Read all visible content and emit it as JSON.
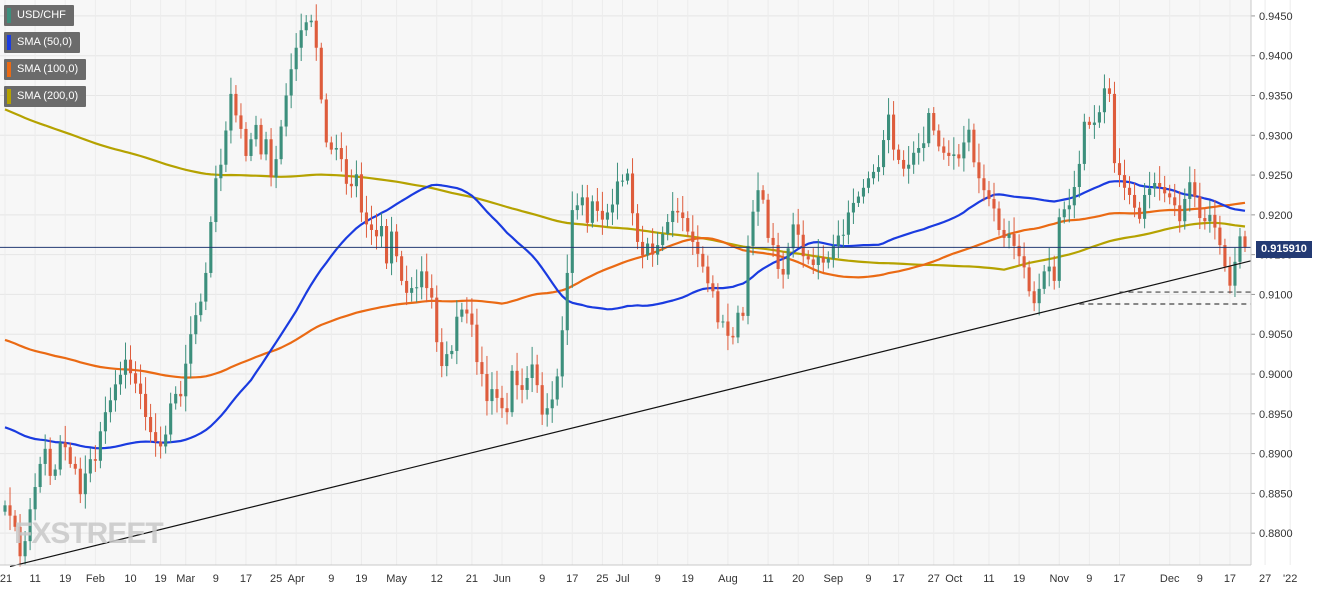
{
  "colors": {
    "up": "#3c8f7c",
    "down": "#de5c3c",
    "sma50": "#1a3be0",
    "sma100": "#ea6a14",
    "sma200": "#b5a200",
    "trendline": "#111111",
    "current_line": "#233a73",
    "support_lines": "#444444"
  },
  "watermark": "FXSTREET",
  "chart_data": {
    "type": "candlestick",
    "symbol": "USD/CHF",
    "legend": [
      {
        "label": "USD/CHF",
        "color": "#3c8f7c"
      },
      {
        "label": "SMA (50,0)",
        "color": "#1a3be0"
      },
      {
        "label": "SMA (100,0)",
        "color": "#ea6a14"
      },
      {
        "label": "SMA (200,0)",
        "color": "#b5a200"
      }
    ],
    "ylim": [
      0.876,
      0.947
    ],
    "y_ticks": [
      "0.9450",
      "0.9400",
      "0.9350",
      "0.9300",
      "0.9250",
      "0.9200",
      "0.9150",
      "0.9100",
      "0.9050",
      "0.9000",
      "0.8950",
      "0.8900",
      "0.8850",
      "0.8800"
    ],
    "y_tick_values": [
      0.945,
      0.94,
      0.935,
      0.93,
      0.925,
      0.92,
      0.915,
      0.91,
      0.905,
      0.9,
      0.895,
      0.89,
      0.885,
      0.88
    ],
    "x_ticks": [
      "'21",
      "11",
      "19",
      "Feb",
      "10",
      "19",
      "Mar",
      "9",
      "17",
      "25",
      "Apr",
      "9",
      "19",
      "May",
      "12",
      "21",
      "Jun",
      "9",
      "17",
      "25",
      "Jul",
      "9",
      "19",
      "Aug",
      "11",
      "20",
      "Sep",
      "9",
      "17",
      "27",
      "Oct",
      "11",
      "19",
      "Nov",
      "9",
      "17",
      "Dec",
      "9",
      "17",
      "27",
      "'22"
    ],
    "x_tick_index": [
      0,
      6,
      12,
      18,
      25,
      31,
      36,
      42,
      48,
      54,
      58,
      65,
      71,
      78,
      86,
      93,
      99,
      107,
      113,
      119,
      123,
      130,
      136,
      144,
      152,
      158,
      165,
      172,
      178,
      185,
      189,
      196,
      202,
      210,
      216,
      222,
      232,
      238,
      244,
      251,
      256
    ],
    "current_price": "0.915910",
    "current_value": 0.91591,
    "support_levels": [
      0.9103,
      0.9088
    ],
    "trendline": [
      {
        "i": 1,
        "y": 0.8758
      },
      {
        "i": 259,
        "y": 0.9159
      }
    ],
    "close": [
      0.8835,
      0.8822,
      0.8808,
      0.8771,
      0.879,
      0.883,
      0.8858,
      0.8887,
      0.8906,
      0.8872,
      0.888,
      0.8914,
      0.8908,
      0.8887,
      0.8881,
      0.8849,
      0.8875,
      0.8893,
      0.8891,
      0.8928,
      0.8952,
      0.8967,
      0.8987,
      0.8999,
      0.9018,
      0.9001,
      0.8988,
      0.8975,
      0.8946,
      0.8927,
      0.8915,
      0.8909,
      0.8924,
      0.8963,
      0.8975,
      0.8972,
      0.9013,
      0.905,
      0.9074,
      0.9091,
      0.9127,
      0.9191,
      0.9246,
      0.9263,
      0.9306,
      0.9352,
      0.9325,
      0.9308,
      0.9274,
      0.9295,
      0.9313,
      0.9276,
      0.9295,
      0.9247,
      0.927,
      0.9311,
      0.935,
      0.9383,
      0.941,
      0.9432,
      0.9442,
      0.9444,
      0.941,
      0.9345,
      0.9291,
      0.9282,
      0.9284,
      0.927,
      0.9239,
      0.9236,
      0.9251,
      0.9203,
      0.9188,
      0.9181,
      0.9173,
      0.9186,
      0.9139,
      0.9179,
      0.9148,
      0.9117,
      0.9102,
      0.9108,
      0.9109,
      0.9129,
      0.9108,
      0.9096,
      0.904,
      0.901,
      0.9025,
      0.9029,
      0.9072,
      0.9081,
      0.9076,
      0.9062,
      0.9015,
      0.9,
      0.8966,
      0.8981,
      0.897,
      0.8957,
      0.8952,
      0.9004,
      0.8986,
      0.898,
      0.8995,
      0.9012,
      0.8986,
      0.8949,
      0.8957,
      0.8968,
      0.8997,
      0.9055,
      0.9127,
      0.9206,
      0.9212,
      0.9222,
      0.919,
      0.9217,
      0.9205,
      0.9194,
      0.9203,
      0.9213,
      0.9242,
      0.9243,
      0.9252,
      0.9202,
      0.9166,
      0.9149,
      0.9164,
      0.915,
      0.9162,
      0.9176,
      0.9191,
      0.9205,
      0.9203,
      0.9196,
      0.9179,
      0.9166,
      0.9151,
      0.9135,
      0.9114,
      0.9104,
      0.9065,
      0.9066,
      0.9048,
      0.9046,
      0.9077,
      0.9073,
      0.9161,
      0.9204,
      0.9231,
      0.9219,
      0.9171,
      0.9162,
      0.9132,
      0.9125,
      0.9158,
      0.9188,
      0.9175,
      0.9148,
      0.9144,
      0.9137,
      0.9147,
      0.914,
      0.9145,
      0.9161,
      0.9174,
      0.9175,
      0.9203,
      0.9215,
      0.9223,
      0.9234,
      0.9246,
      0.9254,
      0.926,
      0.9294,
      0.9326,
      0.9282,
      0.9269,
      0.9258,
      0.9263,
      0.9278,
      0.9284,
      0.929,
      0.9328,
      0.9306,
      0.9286,
      0.9278,
      0.9274,
      0.9276,
      0.9271,
      0.9291,
      0.9307,
      0.9266,
      0.9246,
      0.9231,
      0.922,
      0.9208,
      0.9181,
      0.9171,
      0.9176,
      0.9161,
      0.9148,
      0.9134,
      0.9104,
      0.9089,
      0.9107,
      0.9129,
      0.9135,
      0.9117,
      0.9197,
      0.9207,
      0.9212,
      0.9235,
      0.9264,
      0.9317,
      0.9313,
      0.9316,
      0.9329,
      0.9359,
      0.9352,
      0.9265,
      0.925,
      0.9234,
      0.9225,
      0.9209,
      0.9195,
      0.9225,
      0.9233,
      0.924,
      0.9235,
      0.9227,
      0.9222,
      0.9212,
      0.9192,
      0.922,
      0.9241,
      0.9223,
      0.9196,
      0.9192,
      0.92,
      0.9184,
      0.9162,
      0.9135,
      0.9111,
      0.9141,
      0.9173,
      0.9159
    ]
  }
}
